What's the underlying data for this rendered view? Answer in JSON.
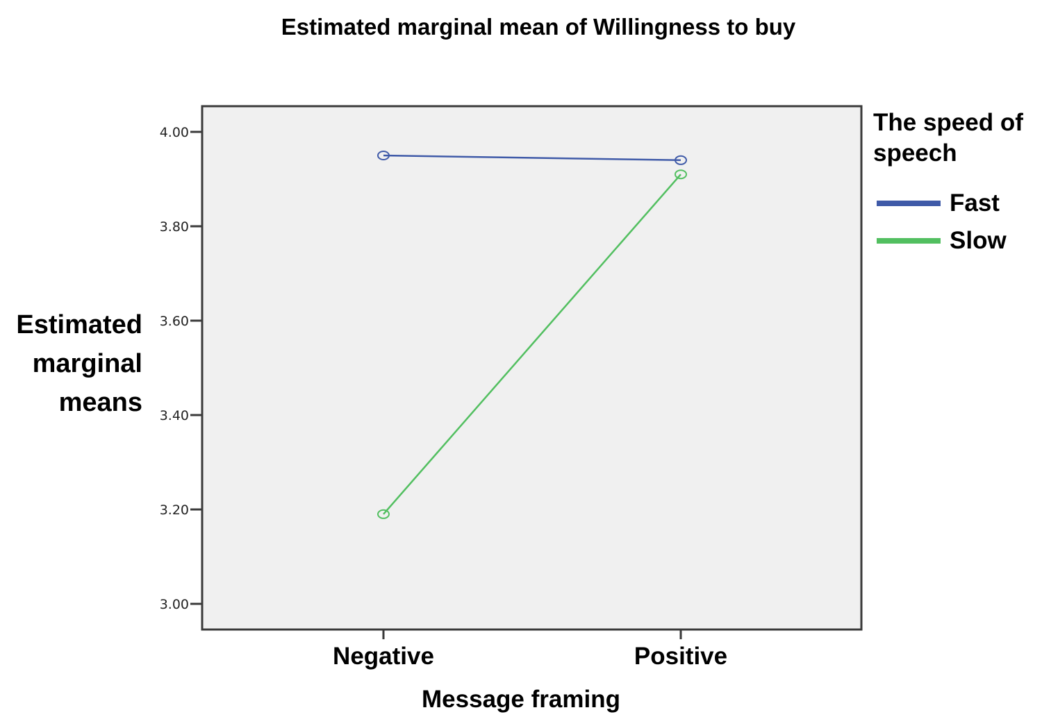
{
  "chart_data": {
    "type": "line",
    "title": "Estimated marginal mean of Willingness to buy",
    "xlabel": "Message framing",
    "ylabel": "Estimated marginal means",
    "ylabel_lines": [
      "Estimated",
      "marginal",
      "means"
    ],
    "categories": [
      "Negative",
      "Positive"
    ],
    "series": [
      {
        "name": "Fast",
        "color": "#3f5aa8",
        "values": [
          3.95,
          3.94
        ]
      },
      {
        "name": "Slow",
        "color": "#52bf60",
        "values": [
          3.19,
          3.91
        ]
      }
    ],
    "ylim": [
      2.945,
      4.055
    ],
    "yticks": [
      3.0,
      3.2,
      3.4,
      3.6,
      3.8,
      4.0
    ],
    "ytick_labels": [
      "3.00",
      "3.20",
      "3.40",
      "3.60",
      "3.80",
      "4.00"
    ],
    "grid": false,
    "legend_title": "The speed of speech",
    "legend_title_lines": [
      "The speed of",
      "speech"
    ],
    "legend_position": "right",
    "plot_background": "#f0f0f0",
    "marker": "open-circle"
  }
}
